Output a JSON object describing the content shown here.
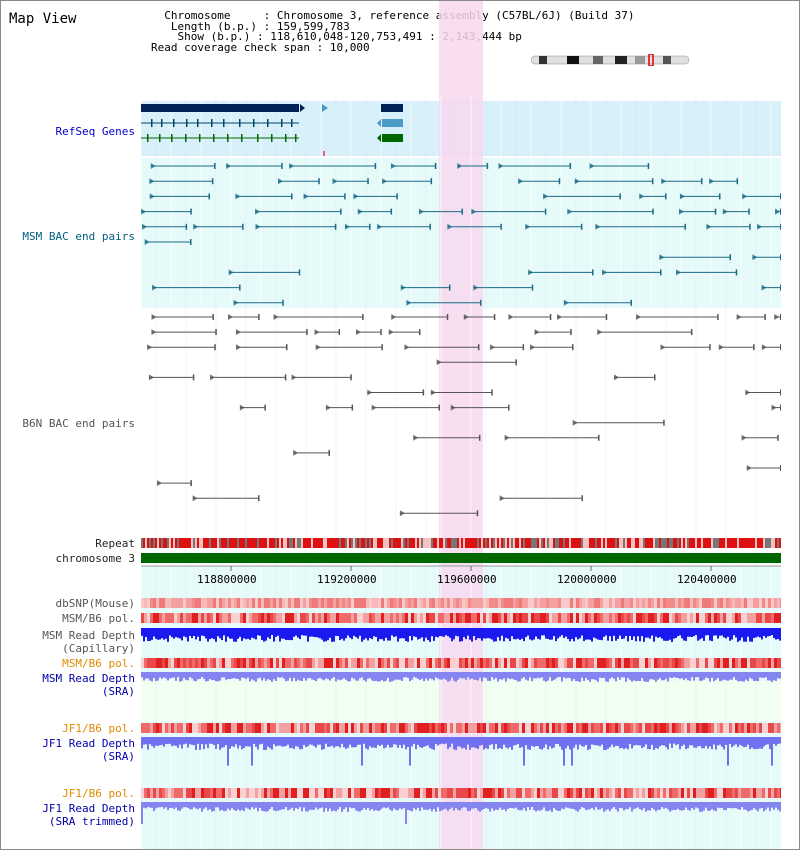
{
  "title": "Map View",
  "info": {
    "chromosome_label": "Chromosome",
    "chromosome_value": "Chromosome 3, reference assembly (C57BL/6J) (Build 37)",
    "length_label": "Length (b.p.)",
    "length_value": "159,599,783",
    "show_label": "Show (b.p.)",
    "show_value": "118,610,048-120,753,491 : 2,143,444 bp",
    "span_label": "Read coverage check span",
    "span_value": "10,000"
  },
  "tracks": {
    "refseq": "RefSeq Genes",
    "msm_bac": "MSM BAC end pairs",
    "b6n_bac": "B6N BAC end pairs",
    "repeat": "Repeat",
    "chromosome": "chromosome 3",
    "dbsnp": "dbSNP(Mouse)",
    "msm_b6_pol_1": "MSM/B6 pol.",
    "msm_read_cap": "MSM Read Depth\n(Capillary)",
    "msm_b6_pol_2": "MSM/B6 pol.",
    "msm_read_sra": "MSM Read Depth\n(SRA)",
    "jf1_b6_pol_1": "JF1/B6 pol.",
    "jf1_read_sra": "JF1 Read Depth\n(SRA)",
    "jf1_b6_pol_2": "JF1/B6 pol.",
    "jf1_read_trim": "JF1 Read Depth\n(SRA trimmed)"
  },
  "axis_ticks": [
    "118800000",
    "119200000",
    "119600000",
    "120000000",
    "120400000"
  ],
  "colors": {
    "refseq_bg": "#d8f0fa",
    "bac_bg": "#e6fafa",
    "highlight": "#f8d8f0",
    "chromosome": "#006600",
    "refseq_dark": "#002255",
    "refseq_mid": "#4a9ac8",
    "refseq_green": "#006600",
    "msm_line": "#1a6b86",
    "b6n_line": "#555555",
    "depth_blue": "#1a1aee",
    "depth_light": "#7d7df5",
    "pol_red": "#e02020"
  }
}
